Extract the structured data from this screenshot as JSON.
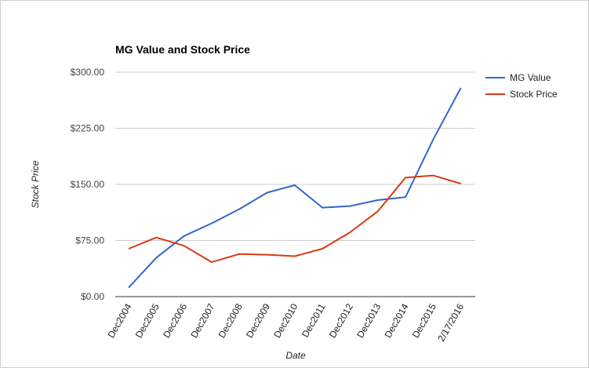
{
  "chart_data": {
    "type": "line",
    "title": "MG Value and Stock Price",
    "xlabel": "Date",
    "ylabel": "Stock Price",
    "categories": [
      "Dec2004",
      "Dec2005",
      "Dec2006",
      "Dec2007",
      "Dec2008",
      "Dec2009",
      "Dec2010",
      "Dec2011",
      "Dec2012",
      "Dec2013",
      "Dec2014",
      "Dec2015",
      "2/17/2016"
    ],
    "series": [
      {
        "name": "MG Value",
        "color": "#3366cc",
        "values": [
          12,
          52,
          81,
          98,
          117,
          139,
          149,
          119,
          121,
          129,
          133,
          210,
          279
        ]
      },
      {
        "name": "Stock Price",
        "color": "#dc3912",
        "values": [
          64,
          79,
          68,
          46,
          57,
          56,
          54,
          64,
          86,
          114,
          159,
          162,
          151
        ]
      }
    ],
    "ylim": [
      0,
      300
    ],
    "yticks": [
      0,
      75,
      150,
      225,
      300
    ],
    "ytick_labels": [
      "$0.00",
      "$75.00",
      "$150.00",
      "$225.00",
      "$300.00"
    ],
    "grid": true,
    "legend_position": "right"
  }
}
